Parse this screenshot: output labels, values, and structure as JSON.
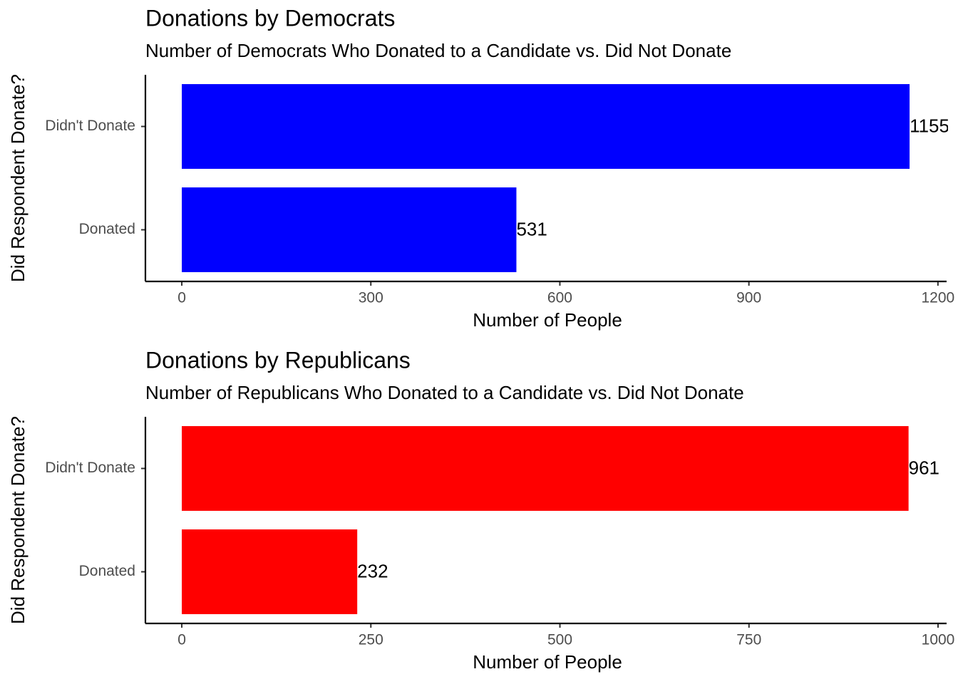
{
  "chart_data": [
    {
      "type": "bar",
      "orientation": "horizontal",
      "title": "Donations by Democrats",
      "subtitle": "Number of Democrats Who Donated to a Candidate vs. Did Not Donate",
      "x_label": "Number of People",
      "y_label": "Did Respondent Donate?",
      "categories": [
        "Didn't Donate",
        "Donated"
      ],
      "values": [
        1155,
        531
      ],
      "color": "#0000ff",
      "xlim": [
        -57.75,
        1213.75
      ],
      "xticks": [
        0,
        300,
        600,
        900,
        1200
      ]
    },
    {
      "type": "bar",
      "orientation": "horizontal",
      "title": "Donations by Republicans",
      "subtitle": "Number of Republicans Who Donated to a Candidate vs. Did Not Donate",
      "x_label": "Number of People",
      "y_label": "Did Respondent Donate?",
      "categories": [
        "Didn't Donate",
        "Donated"
      ],
      "values": [
        961,
        232
      ],
      "color": "#ff0000",
      "xlim": [
        -48.1,
        1011.3
      ],
      "xticks": [
        0,
        250,
        500,
        750,
        1000
      ]
    }
  ]
}
